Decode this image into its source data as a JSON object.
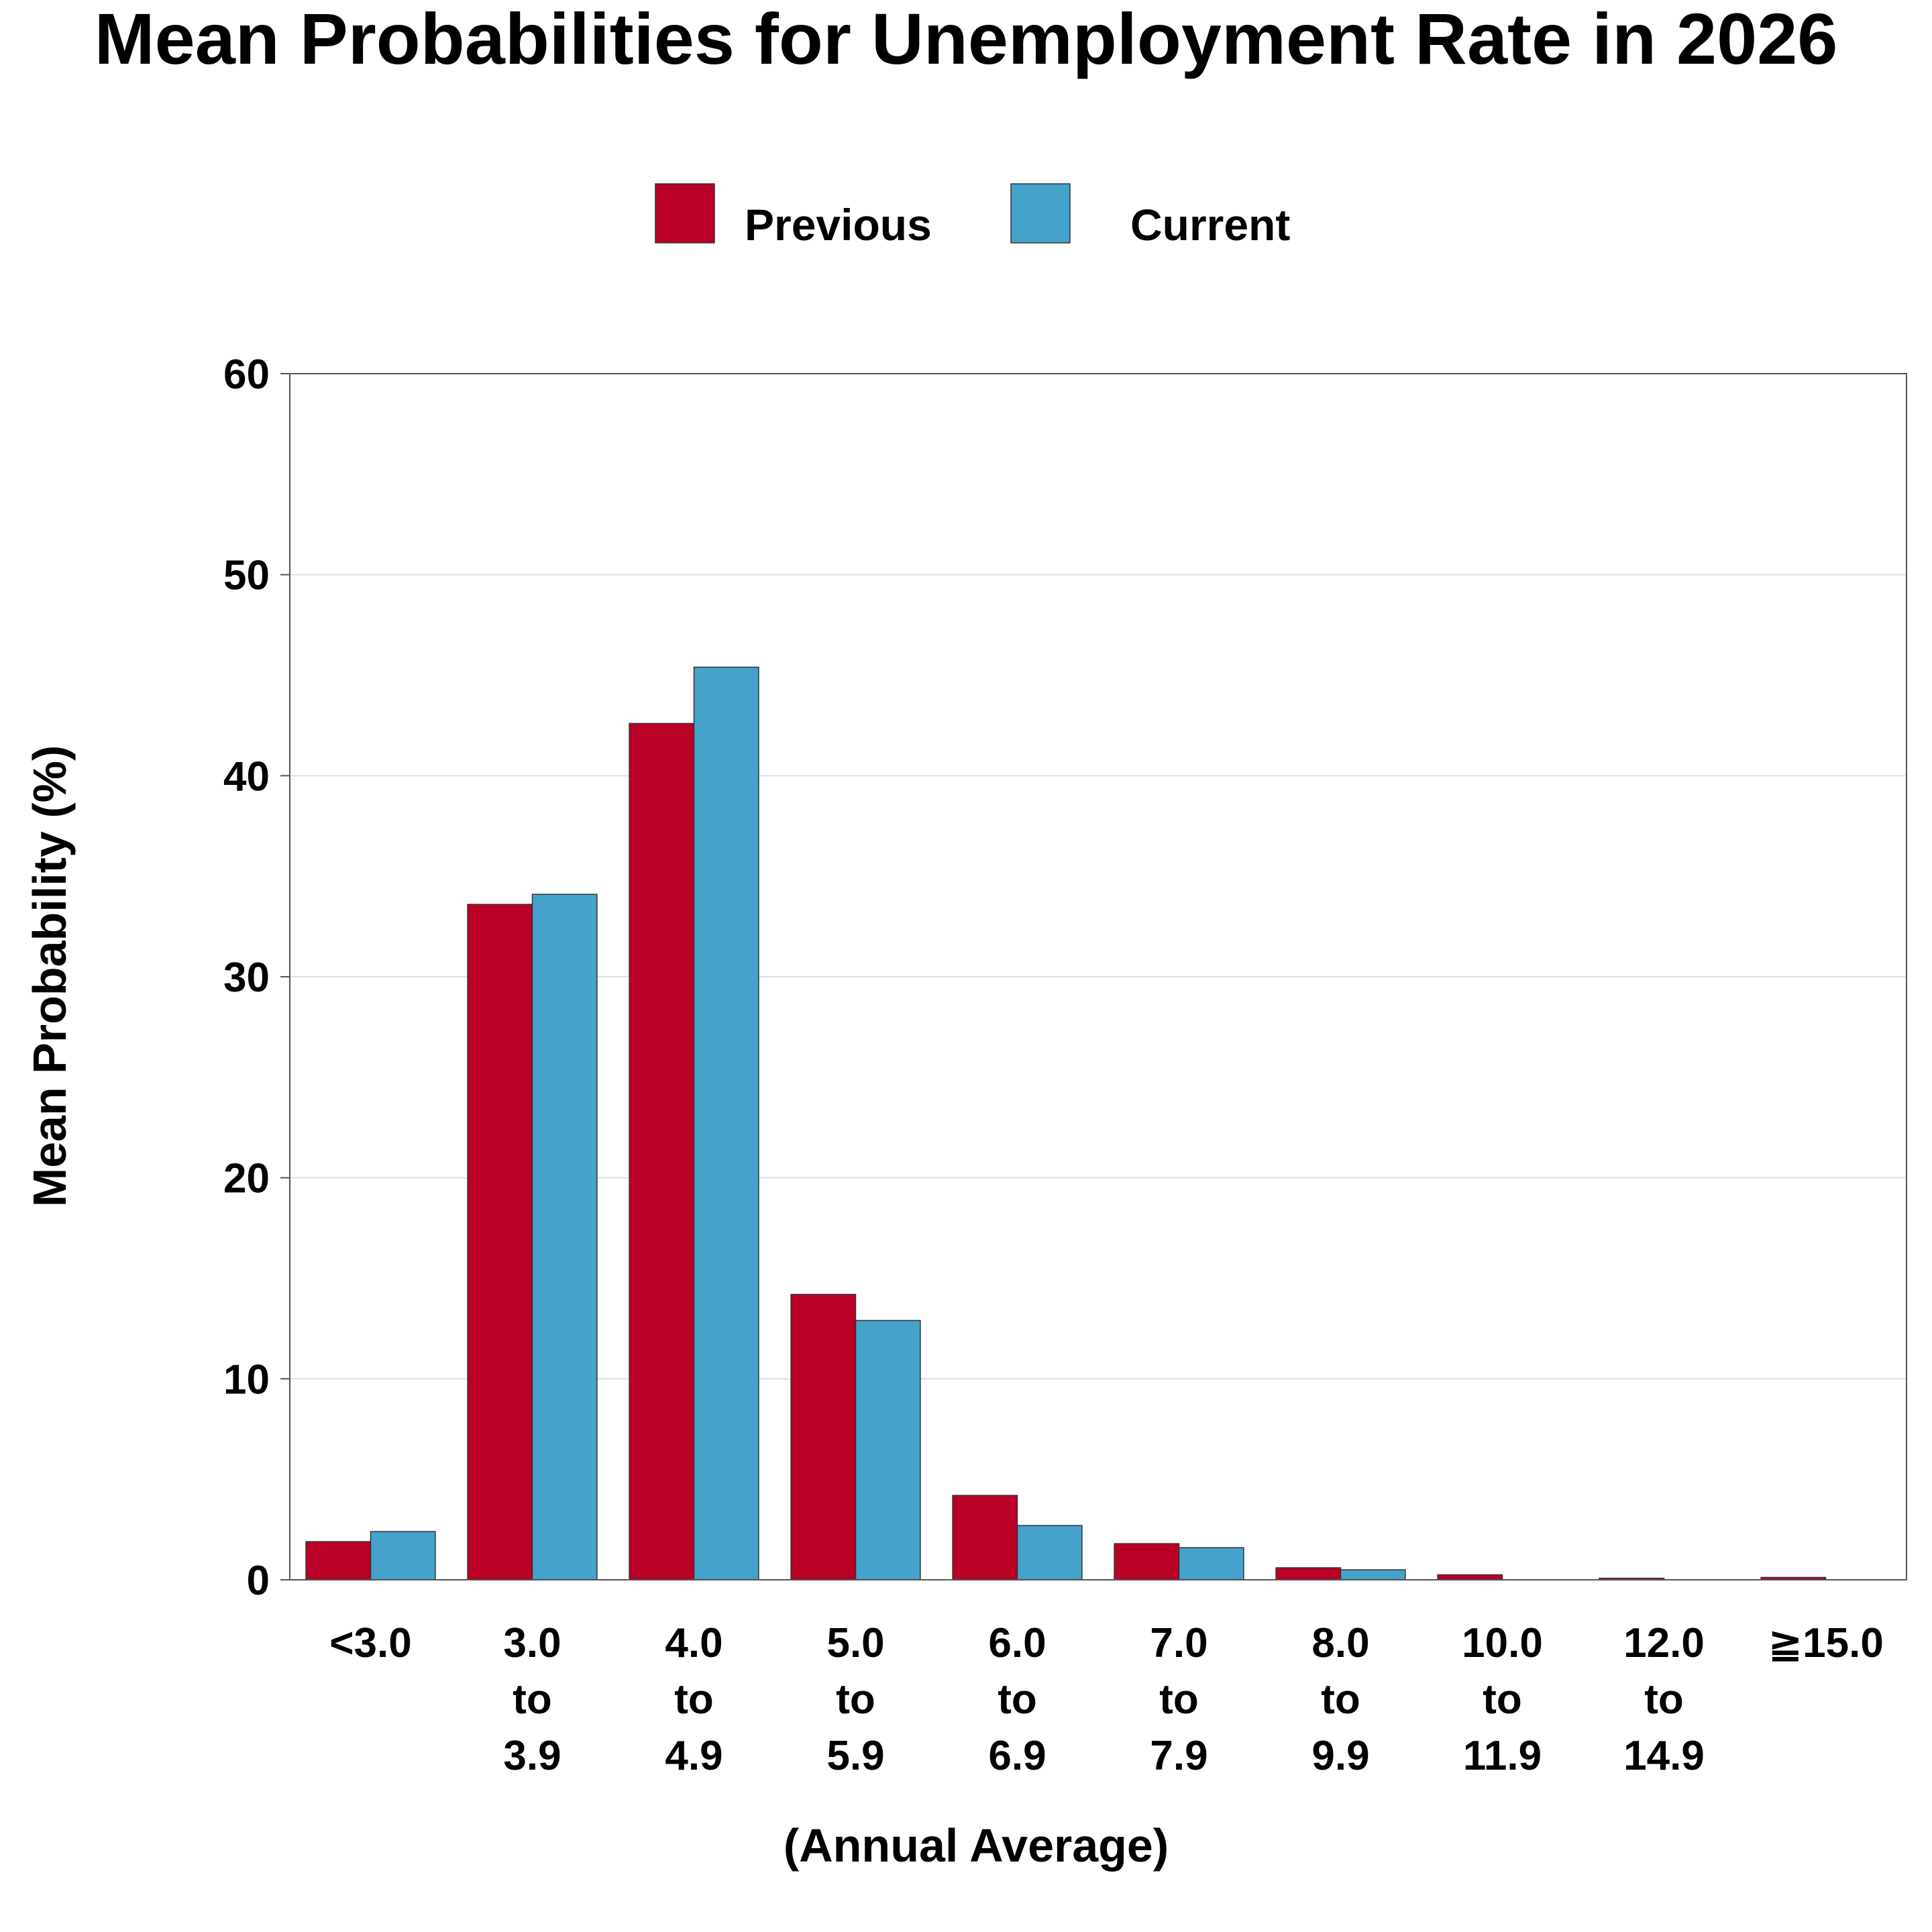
{
  "chart_data": {
    "type": "bar",
    "title": "Mean Probabilities for Unemployment Rate in 2026",
    "xlabel": "(Annual Average)",
    "ylabel": "Mean Probability (%)",
    "ylim": [
      0,
      60
    ],
    "yticks": [
      "0",
      "10",
      "20",
      "30",
      "40",
      "50",
      "60"
    ],
    "grid": true,
    "legend_position": "top-center",
    "categories": [
      [
        "<3.0"
      ],
      [
        "3.0",
        "to",
        "3.9"
      ],
      [
        "4.0",
        "to",
        "4.9"
      ],
      [
        "5.0",
        "to",
        "5.9"
      ],
      [
        "6.0",
        "to",
        "6.9"
      ],
      [
        "7.0",
        "to",
        "7.9"
      ],
      [
        "8.0",
        "to",
        "9.9"
      ],
      [
        "10.0",
        "to",
        "11.9"
      ],
      [
        "12.0",
        "to",
        "14.9"
      ],
      [
        "≧15.0"
      ]
    ],
    "series": [
      {
        "name": "Previous",
        "color": "#BA0027",
        "values": [
          1.9,
          33.6,
          42.6,
          14.2,
          4.2,
          1.8,
          0.6,
          0.25,
          0.08,
          0.12
        ]
      },
      {
        "name": "Current",
        "color": "#44A2CB",
        "values": [
          2.4,
          34.1,
          45.4,
          12.9,
          2.7,
          1.6,
          0.5,
          0.0,
          0.0,
          0.0
        ]
      }
    ]
  }
}
